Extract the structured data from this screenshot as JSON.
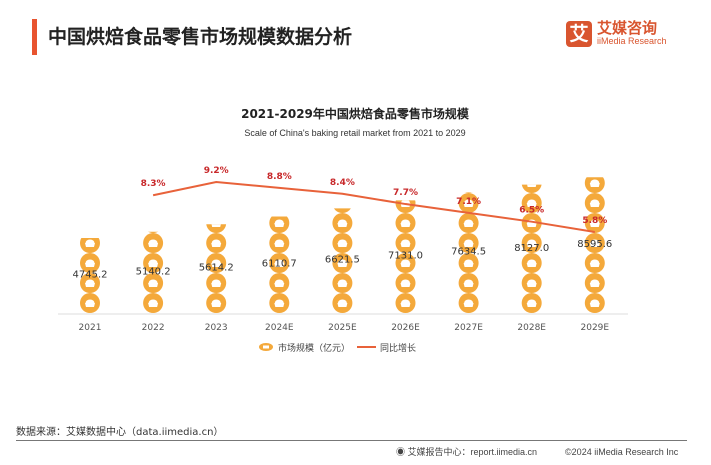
{
  "header": {
    "title": "中国烘焙食品零售市场规模数据分析"
  },
  "logo": {
    "mark": "艾",
    "cn": "艾媒咨询",
    "en": "iiMedia Research"
  },
  "chart_data": {
    "type": "bar",
    "title": "2021-2029年中国烘焙食品零售市场规模",
    "subtitle": "Scale of China's baking retail market from 2021 to 2029",
    "categories": [
      "2021",
      "2022",
      "2023",
      "2024E",
      "2025E",
      "2026E",
      "2027E",
      "2028E",
      "2029E"
    ],
    "series": [
      {
        "name": "市场规模（亿元）",
        "type": "pictograph-bar",
        "values": [
          4745.2,
          5140.2,
          5614.2,
          6110.7,
          6621.5,
          7131.0,
          7634.5,
          8127.0,
          8595.6
        ],
        "color": "#f4a93b"
      },
      {
        "name": "同比增长",
        "type": "line",
        "values": [
          null,
          8.3,
          9.2,
          8.8,
          8.4,
          7.7,
          7.1,
          6.5,
          5.8
        ],
        "unit": "%",
        "color": "#e8623a",
        "label_color": "#c8282a"
      }
    ],
    "legend": "bottom",
    "grid": false
  },
  "footer": {
    "source": "数据来源：艾媒数据中心（data.iimedia.cn）",
    "report": "艾媒报告中心：report.iimedia.cn",
    "copyright": "©2024 iiMedia Research  Inc"
  }
}
